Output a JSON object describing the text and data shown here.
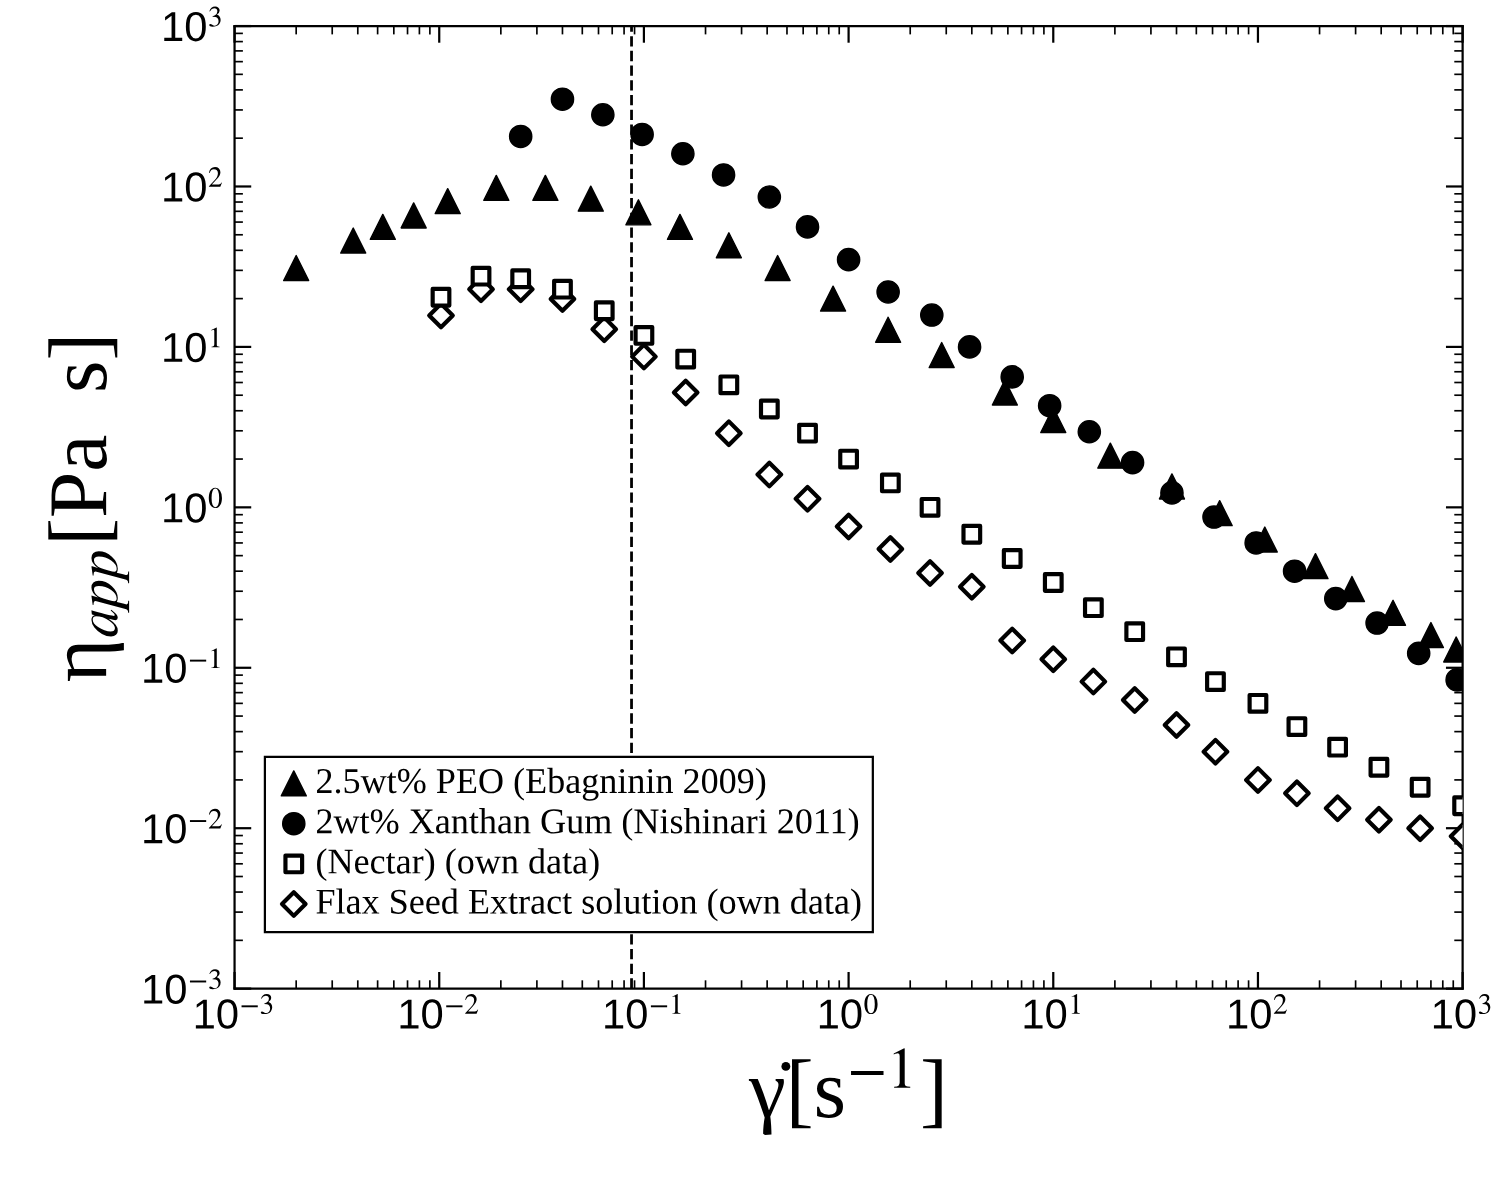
{
  "chart_data": {
    "type": "scatter",
    "xlabel": "γ̇[s$^{−1}$]",
    "ylabel": "η$_{app}$[Pa  s]",
    "log": "xy",
    "grid": false,
    "legend": "bottom left",
    "xlim": [
      0.001,
      1000
    ],
    "ylim": [
      0.001,
      1000
    ],
    "xticks": [
      {
        "value": 0.001,
        "label": "10$^{−3}$"
      },
      {
        "value": 0.01,
        "label": "10$^{−2}$"
      },
      {
        "value": 0.1,
        "label": "10$^{−1}$"
      },
      {
        "value": 1,
        "label": "10$^{0}$"
      },
      {
        "value": 10,
        "label": "10$^{1}$"
      },
      {
        "value": 100,
        "label": "10$^{2}$"
      },
      {
        "value": 1000,
        "label": "10$^{3}$"
      }
    ],
    "yticks": [
      {
        "value": 0.001,
        "label": "10$^{−3}$"
      },
      {
        "value": 0.01,
        "label": "10$^{−2}$"
      },
      {
        "value": 0.1,
        "label": "10$^{−1}$"
      },
      {
        "value": 1,
        "label": "10$^{0}$"
      },
      {
        "value": 10,
        "label": "10$^{1}$"
      },
      {
        "value": 100,
        "label": "10$^{2}$"
      },
      {
        "value": 1000,
        "label": "10$^{3}$"
      }
    ],
    "ref_lines": [
      {
        "axis": "x",
        "value": 0.087,
        "label": null,
        "color": "#000000",
        "line_style": "dashed"
      }
    ],
    "series": [
      {
        "name": "2.5wt% PEO (Ebagninin 2009)",
        "color": "#000000",
        "marker": "triangle",
        "x": [
          0.002,
          0.0038,
          0.0053,
          0.0075,
          0.011,
          0.019,
          0.033,
          0.055,
          0.094,
          0.15,
          0.26,
          0.45,
          0.84,
          1.56,
          2.85,
          5.8,
          10,
          19,
          38,
          65,
          108,
          191,
          288,
          457,
          700,
          930
        ],
        "values": [
          31,
          46,
          56,
          66,
          81,
          98,
          98,
          84,
          69,
          56,
          43,
          31,
          20,
          12.8,
          8.9,
          5.2,
          3.5,
          2.1,
          1.35,
          0.92,
          0.63,
          0.43,
          0.31,
          0.22,
          0.16,
          0.13
        ]
      },
      {
        "name": "2wt% Xanthan Gum (Nishinari 2011)",
        "color": "#000000",
        "marker": "circle",
        "x": [
          0.025,
          0.04,
          0.063,
          0.098,
          0.155,
          0.245,
          0.41,
          0.63,
          1.0,
          1.56,
          2.55,
          3.9,
          6.3,
          9.6,
          15,
          24.4,
          38,
          61,
          98,
          151,
          240,
          382,
          610,
          940
        ],
        "values": [
          205,
          350,
          280,
          211,
          160,
          118,
          86,
          56,
          35,
          22,
          15.8,
          10,
          6.5,
          4.3,
          2.96,
          1.9,
          1.23,
          0.87,
          0.6,
          0.4,
          0.27,
          0.19,
          0.123,
          0.084
        ]
      },
      {
        "name": "(Nectar) (own data)",
        "color": "#000000",
        "marker": "square",
        "x": [
          0.0102,
          0.016,
          0.025,
          0.04,
          0.064,
          0.1,
          0.16,
          0.26,
          0.41,
          0.63,
          1.0,
          1.6,
          2.5,
          4.0,
          6.3,
          10,
          15.7,
          25,
          40,
          62,
          100,
          155,
          245,
          390,
          620,
          1000
        ],
        "values": [
          20.4,
          27.6,
          26.6,
          22.9,
          16.8,
          11.8,
          8.4,
          5.8,
          4.1,
          2.9,
          2.0,
          1.42,
          1.0,
          0.68,
          0.48,
          0.34,
          0.237,
          0.168,
          0.117,
          0.082,
          0.06,
          0.043,
          0.032,
          0.024,
          0.018,
          0.0138
        ]
      },
      {
        "name": "Flax Seed Extract solution (own data)",
        "color": "#000000",
        "marker": "diamond",
        "x": [
          0.0102,
          0.016,
          0.025,
          0.04,
          0.064,
          0.1,
          0.16,
          0.26,
          0.41,
          0.63,
          1.0,
          1.6,
          2.5,
          4.0,
          6.3,
          10,
          15.7,
          25,
          40,
          62,
          100,
          155,
          245,
          390,
          620,
          1000
        ],
        "values": [
          15.7,
          22.9,
          22.9,
          19.9,
          12.9,
          8.7,
          5.2,
          2.9,
          1.6,
          1.13,
          0.76,
          0.55,
          0.39,
          0.32,
          0.148,
          0.113,
          0.082,
          0.063,
          0.044,
          0.03,
          0.02,
          0.0165,
          0.0133,
          0.0113,
          0.01,
          0.0089
        ]
      }
    ]
  }
}
